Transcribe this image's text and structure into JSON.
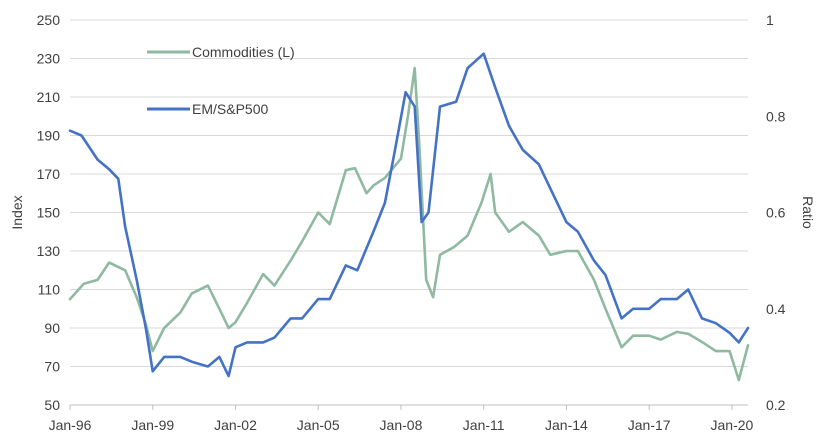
{
  "chart_data": {
    "type": "line",
    "xlabel": "",
    "ylabel_left": "Index",
    "ylabel_right": "Ratio",
    "x_tick_labels": [
      "Jan-96",
      "Jan-99",
      "Jan-02",
      "Jan-05",
      "Jan-08",
      "Jan-11",
      "Jan-14",
      "Jan-17",
      "Jan-20"
    ],
    "x_range": [
      "1996-01",
      "2020-08"
    ],
    "ylim_left": [
      50,
      250
    ],
    "yticks_left": [
      50,
      70,
      90,
      110,
      130,
      150,
      170,
      190,
      210,
      230,
      250
    ],
    "ylim_right": [
      0.2,
      1.0
    ],
    "yticks_right": [
      "0.2",
      "0.4",
      "0.6",
      "0.8",
      "1"
    ],
    "grid": "horizontal",
    "legend_placement": "top-left inside",
    "colors": {
      "commodities": "#8fb9a0",
      "em_sp500": "#4472c4",
      "grid": "#d9d9d9",
      "axis": "#bfbfbf",
      "text": "#404040"
    },
    "series": [
      {
        "name": "Commodities (L)",
        "axis": "left",
        "x": [
          "1996-01",
          "1996-07",
          "1997-01",
          "1997-06",
          "1998-01",
          "1998-06",
          "1998-10",
          "1999-01",
          "1999-06",
          "2000-01",
          "2000-06",
          "2001-01",
          "2001-06",
          "2001-10",
          "2002-01",
          "2002-06",
          "2003-01",
          "2003-06",
          "2004-01",
          "2004-06",
          "2005-01",
          "2005-06",
          "2006-01",
          "2006-05",
          "2006-10",
          "2007-01",
          "2007-06",
          "2008-01",
          "2008-04",
          "2008-07",
          "2008-09",
          "2008-12",
          "2009-03",
          "2009-06",
          "2009-12",
          "2010-06",
          "2010-12",
          "2011-04",
          "2011-06",
          "2011-12",
          "2012-06",
          "2013-01",
          "2013-06",
          "2014-01",
          "2014-06",
          "2015-01",
          "2015-06",
          "2016-01",
          "2016-06",
          "2017-01",
          "2017-06",
          "2018-01",
          "2018-06",
          "2019-01",
          "2019-06",
          "2019-12",
          "2020-04",
          "2020-08"
        ],
        "values": [
          105,
          113,
          115,
          124,
          120,
          106,
          92,
          78,
          90,
          98,
          108,
          112,
          100,
          90,
          93,
          103,
          118,
          112,
          125,
          135,
          150,
          144,
          172,
          173,
          160,
          164,
          168,
          178,
          200,
          225,
          185,
          115,
          106,
          128,
          132,
          138,
          155,
          170,
          150,
          140,
          145,
          138,
          128,
          130,
          130,
          115,
          100,
          80,
          86,
          86,
          84,
          88,
          87,
          82,
          78,
          78,
          63,
          81
        ]
      },
      {
        "name": "EM/S&P500",
        "axis": "right",
        "x": [
          "1996-01",
          "1996-06",
          "1997-01",
          "1997-06",
          "1997-10",
          "1998-01",
          "1998-06",
          "1998-10",
          "1999-01",
          "1999-06",
          "2000-01",
          "2000-06",
          "2001-01",
          "2001-06",
          "2001-10",
          "2002-01",
          "2002-06",
          "2003-01",
          "2003-06",
          "2004-01",
          "2004-06",
          "2005-01",
          "2005-06",
          "2006-01",
          "2006-06",
          "2007-01",
          "2007-06",
          "2007-10",
          "2008-03",
          "2008-07",
          "2008-10",
          "2009-01",
          "2009-06",
          "2010-01",
          "2010-06",
          "2011-01",
          "2011-06",
          "2011-12",
          "2012-06",
          "2013-01",
          "2013-06",
          "2014-01",
          "2014-06",
          "2015-01",
          "2015-06",
          "2016-01",
          "2016-06",
          "2017-01",
          "2017-06",
          "2018-01",
          "2018-06",
          "2018-12",
          "2019-06",
          "2019-12",
          "2020-04",
          "2020-08"
        ],
        "values": [
          0.77,
          0.76,
          0.71,
          0.69,
          0.67,
          0.57,
          0.46,
          0.36,
          0.27,
          0.3,
          0.3,
          0.29,
          0.28,
          0.3,
          0.26,
          0.32,
          0.33,
          0.33,
          0.34,
          0.38,
          0.38,
          0.42,
          0.42,
          0.49,
          0.48,
          0.56,
          0.62,
          0.72,
          0.85,
          0.82,
          0.58,
          0.6,
          0.82,
          0.83,
          0.9,
          0.93,
          0.86,
          0.78,
          0.73,
          0.7,
          0.65,
          0.58,
          0.56,
          0.5,
          0.47,
          0.38,
          0.4,
          0.4,
          0.42,
          0.42,
          0.44,
          0.38,
          0.37,
          0.35,
          0.33,
          0.36
        ]
      }
    ]
  }
}
